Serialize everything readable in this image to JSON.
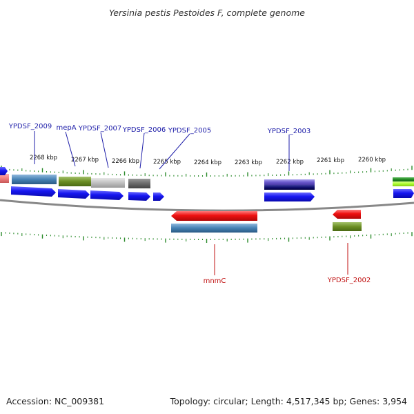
{
  "title": "Yersinia pestis Pestoides F, complete genome",
  "footer": {
    "accession": "Accession: NC_009381",
    "summary": "Topology: circular; Length: 4,517,345 bp; Genes: 3,954"
  },
  "scale_labels": [
    "2268 kbp",
    "2267 kbp",
    "2266 kbp",
    "2265 kbp",
    "2264 kbp",
    "2263 kbp",
    "2262 kbp",
    "2261 kbp",
    "2260 kbp"
  ],
  "gene_labels_top": [
    "YPDSF_2009",
    "mepA",
    "YPDSF_2007",
    "YPDSF_2006",
    "YPDSF_2005",
    "YPDSF_2003"
  ],
  "gene_labels_bottom": [
    "mnmC",
    "YPDSF_2002"
  ],
  "colors": {
    "label_forward": "#1c1ca8",
    "label_reverse": "#c01010",
    "tick": "#2a8a2a",
    "backbone": "#888888",
    "cds_forward": "#1010ee",
    "cds_reverse": "#ee1010"
  }
}
